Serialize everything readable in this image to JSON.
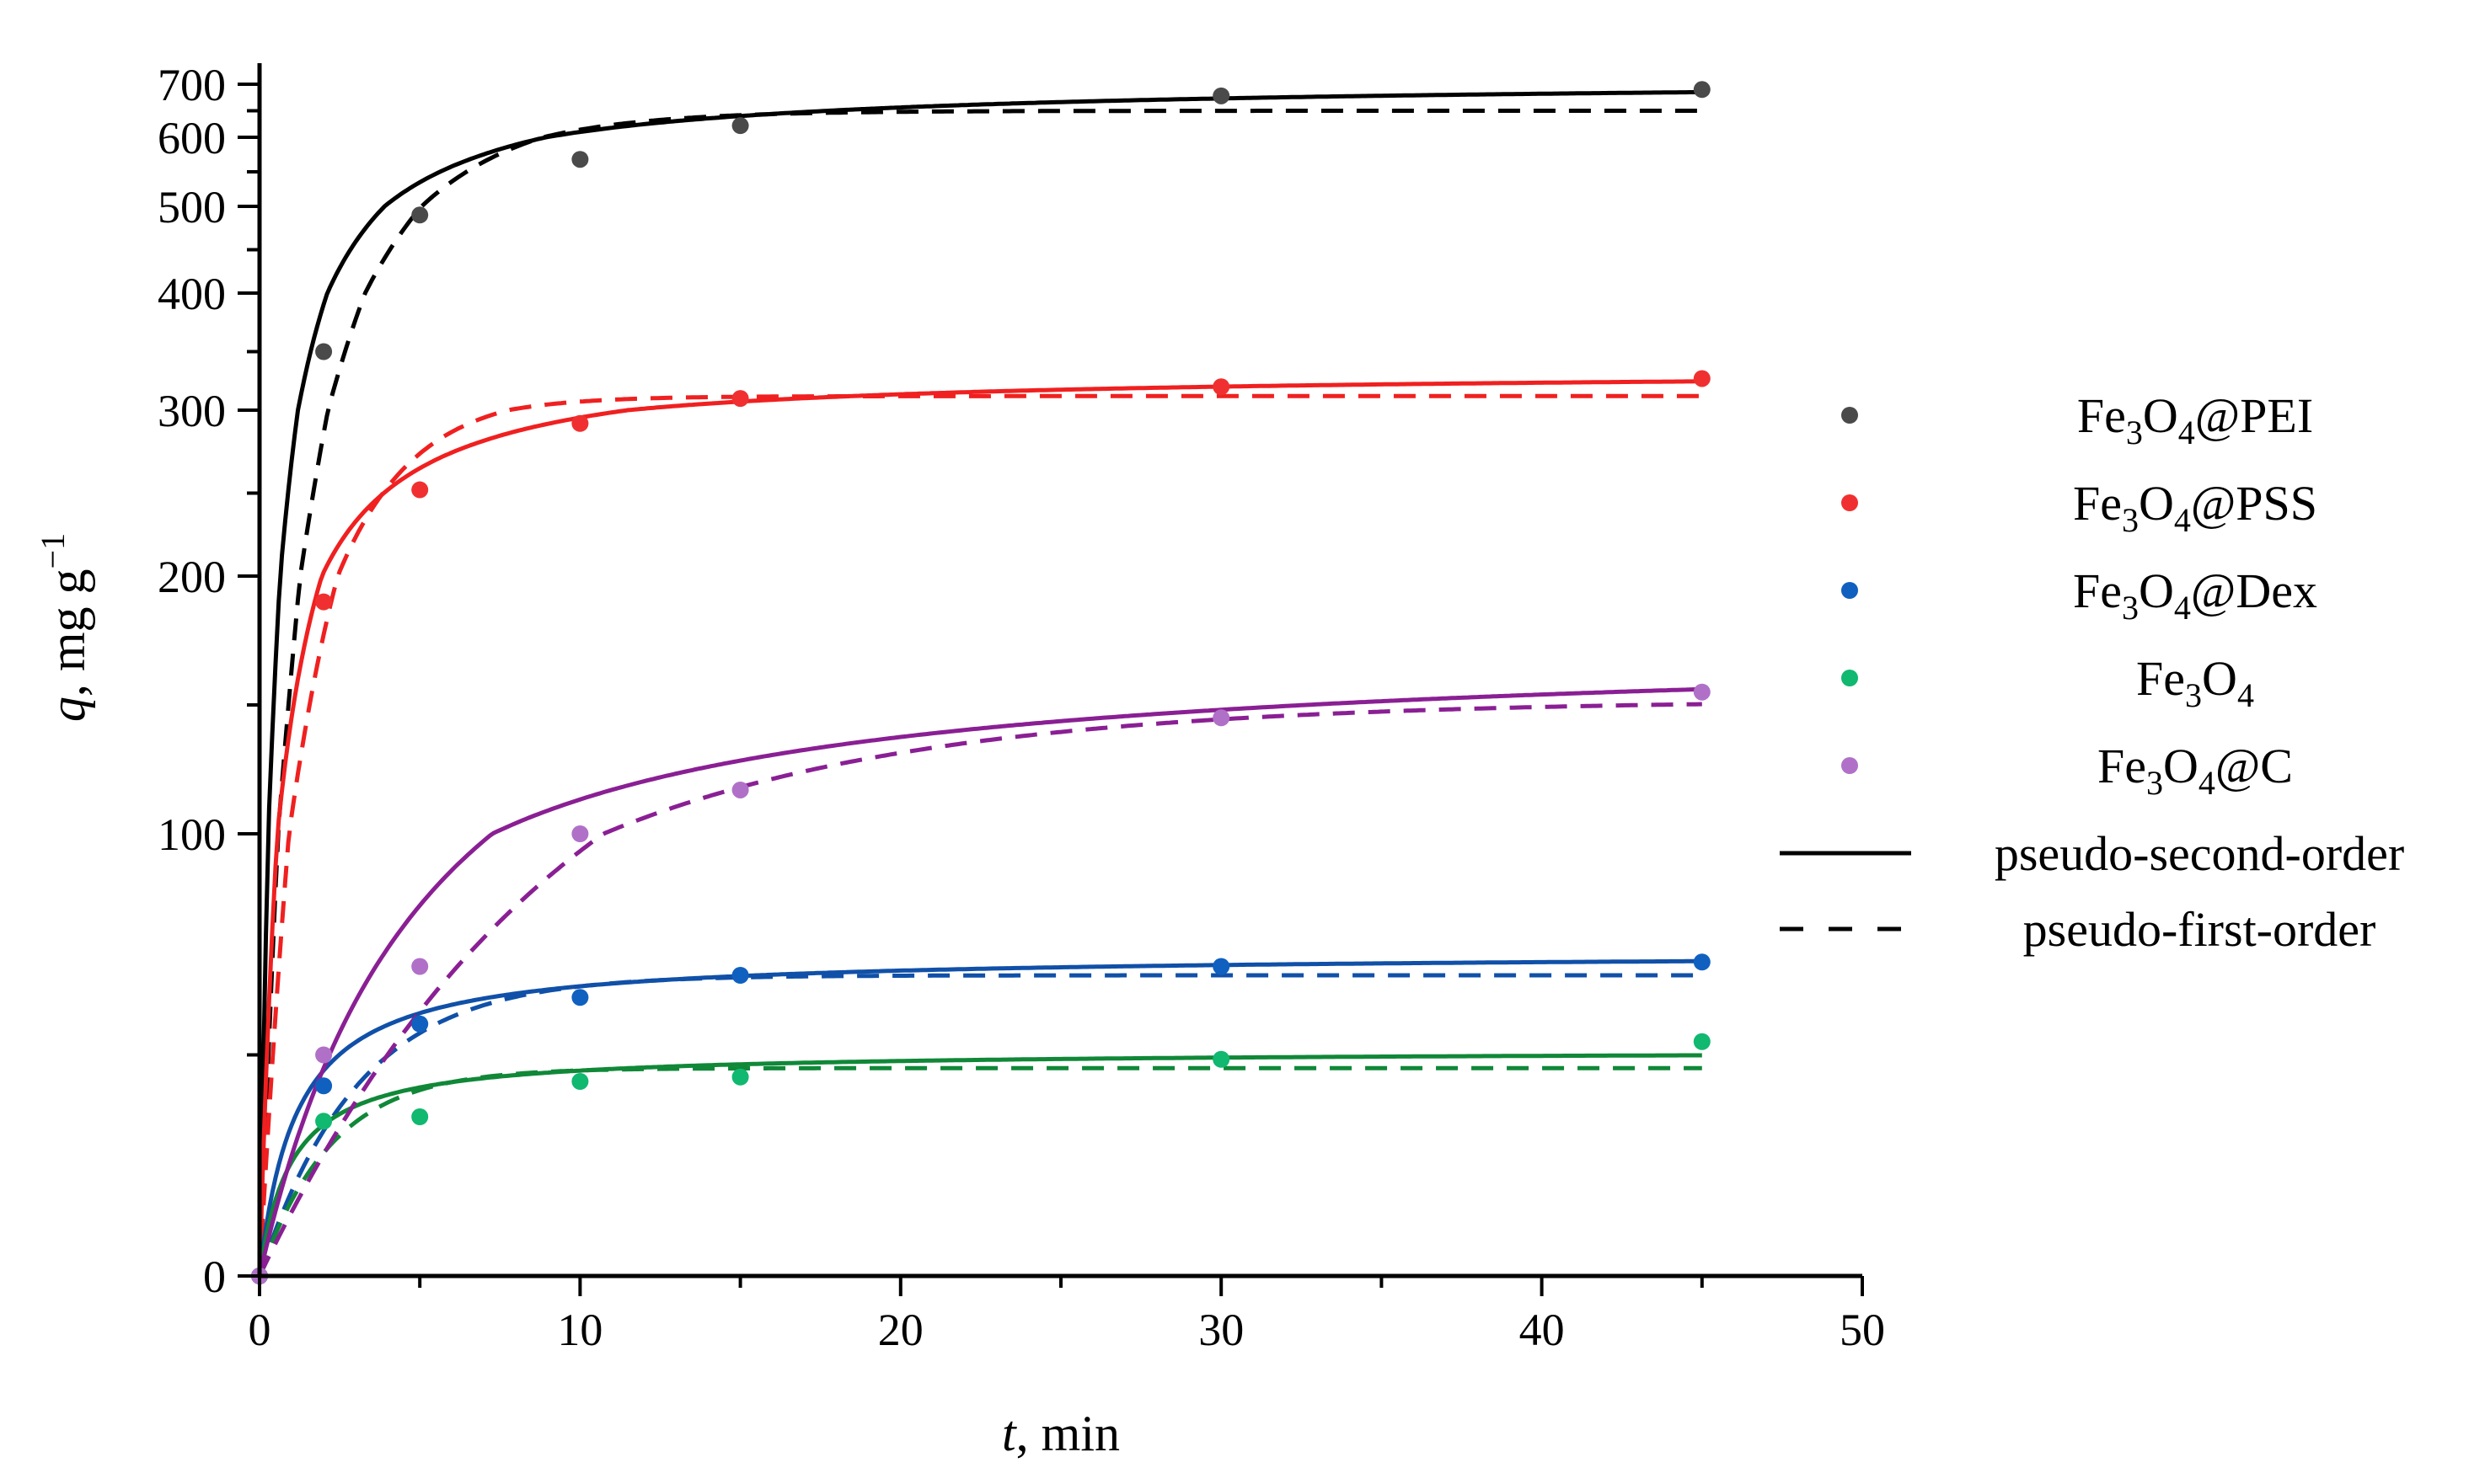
{
  "chart_data": {
    "type": "scatter",
    "title": "",
    "xlabel": {
      "var": "t",
      "rest": ", min"
    },
    "ylabel": {
      "var": "q",
      "rest": ", mg g",
      "sup": "−1"
    },
    "xlim": [
      0,
      50
    ],
    "ylim_display": [
      0,
      700
    ],
    "y_scale": "nonlinear (compressed toward top)",
    "x_ticks": [
      "0",
      "10",
      "20",
      "30",
      "40",
      "50"
    ],
    "y_ticks": [
      "0",
      "100",
      "200",
      "300",
      "400",
      "500",
      "600",
      "700"
    ],
    "y_tick_values": [
      0,
      100,
      200,
      300,
      400,
      500,
      600,
      700
    ],
    "grid": false,
    "legend_position": "right",
    "series": [
      {
        "name": "Fe3O4@PEI",
        "label_parts": [
          "Fe",
          "3",
          "O",
          "4",
          "@PEI"
        ],
        "color": "#4a4a4a",
        "fit_color": "#000000",
        "x": [
          0,
          2,
          5,
          10,
          15,
          30,
          45
        ],
        "y": [
          0,
          350,
          490,
          568,
          622,
          678,
          690
        ],
        "pso_fit": {
          "qe": 710,
          "k2": 0.00086
        },
        "pfo_fit": {
          "qe": 650,
          "k1": 0.29
        }
      },
      {
        "name": "Fe3O4@PSS",
        "label_parts": [
          "Fe",
          "3",
          "O",
          "4",
          "@PSS"
        ],
        "color": "#f03030",
        "fit_color": "#f02020",
        "x": [
          0,
          2,
          5,
          10,
          15,
          30,
          45
        ],
        "y": [
          0,
          190,
          252,
          292,
          310,
          320,
          327
        ],
        "pso_fit": {
          "qe": 334,
          "k2": 0.0023
        },
        "pfo_fit": {
          "qe": 312,
          "k1": 0.42
        }
      },
      {
        "name": "Fe3O4@Dex",
        "label_parts": [
          "Fe",
          "3",
          "O",
          "4",
          "@Dex"
        ],
        "color": "#1060c0",
        "fit_color": "#1050a8",
        "x": [
          0,
          2,
          5,
          10,
          15,
          30,
          45
        ],
        "y": [
          0,
          43,
          57,
          63,
          68,
          70,
          71
        ],
        "pso_fit": {
          "qe": 73,
          "k2": 0.012
        },
        "pfo_fit": {
          "qe": 68,
          "k1": 0.33
        }
      },
      {
        "name": "Fe3O4",
        "label_parts": [
          "Fe",
          "3",
          "O",
          "4",
          ""
        ],
        "color": "#10b870",
        "fit_color": "#108838",
        "x": [
          0,
          2,
          5,
          10,
          15,
          30,
          45
        ],
        "y": [
          0,
          35,
          36,
          44,
          45,
          49,
          53
        ],
        "pso_fit": {
          "qe": 51,
          "k2": 0.02
        },
        "pfo_fit": {
          "qe": 47,
          "k1": 0.45
        }
      },
      {
        "name": "Fe3O4@C",
        "label_parts": [
          "Fe",
          "3",
          "O",
          "4",
          "@C"
        ],
        "color": "#b070c8",
        "fit_color": "#8a1f94",
        "x": [
          0,
          2,
          5,
          10,
          15,
          30,
          45
        ],
        "y": [
          0,
          50,
          70,
          100,
          117,
          145,
          155
        ],
        "pso_fit": {
          "qe": 175,
          "k2": 0.00105
        },
        "pfo_fit": {
          "qe": 152,
          "k1": 0.1
        }
      }
    ],
    "fit_legend": [
      {
        "label": "pseudo-second-order",
        "style": "solid"
      },
      {
        "label": "pseudo-first-order",
        "style": "dashed"
      }
    ]
  }
}
